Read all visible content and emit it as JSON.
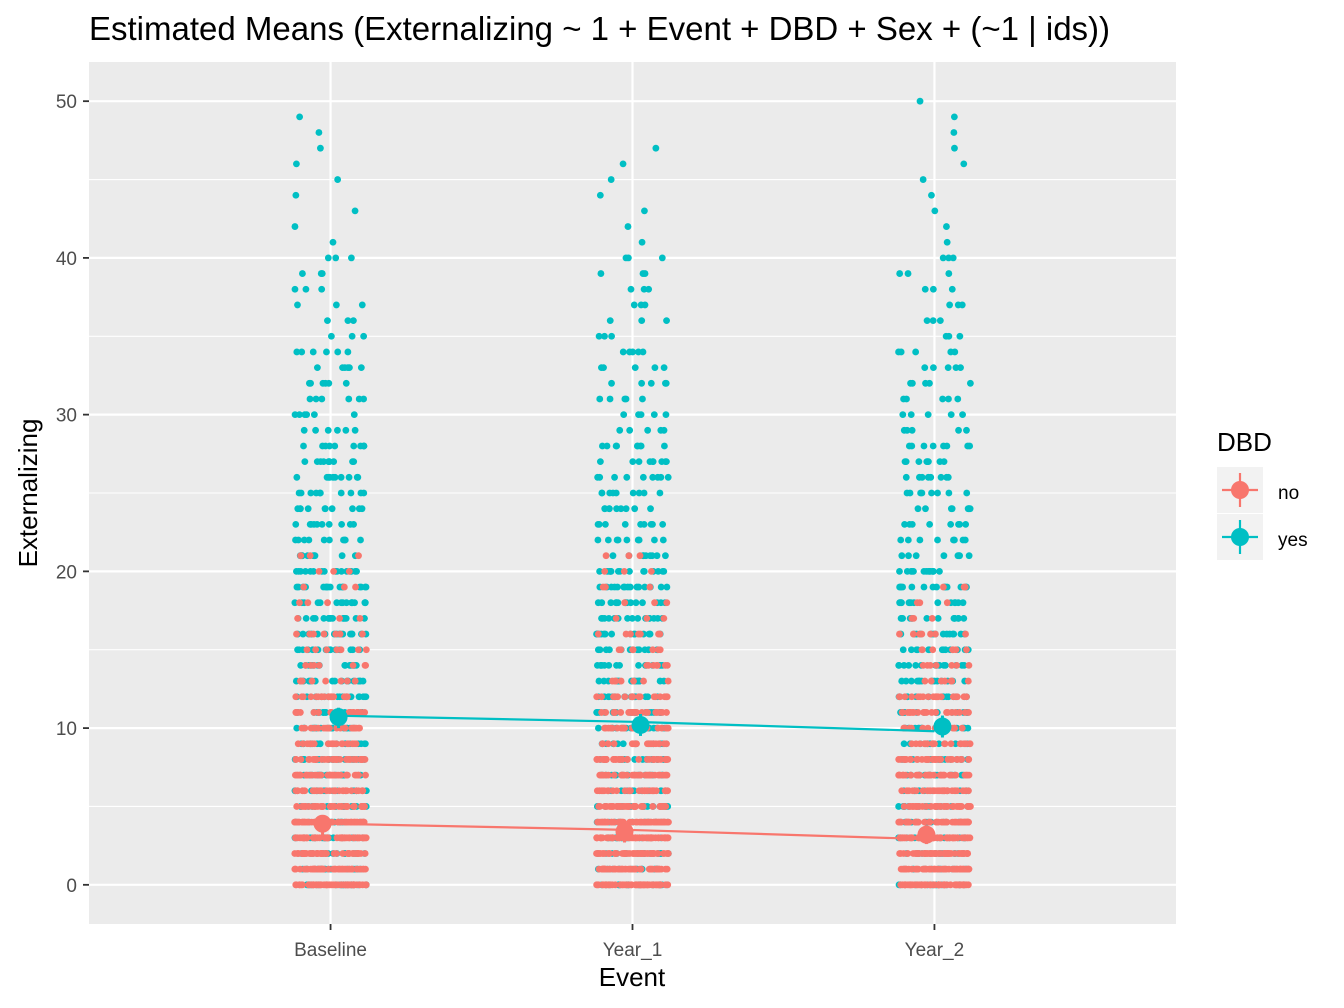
{
  "chart_data": {
    "type": "scatter",
    "title": "Estimated Means (Externalizing ~ 1 + Event + DBD + Sex + (~1 | ids))",
    "xlabel": "Event",
    "ylabel": "Externalizing",
    "categories": [
      "Baseline",
      "Year_1",
      "Year_2"
    ],
    "ylim": [
      -2.5,
      52.5
    ],
    "yticks": [
      0,
      10,
      20,
      30,
      40,
      50
    ],
    "grid": true,
    "legend": {
      "title": "DBD",
      "position": "right",
      "entries": [
        {
          "label": "no",
          "color": "#F8766D"
        },
        {
          "label": "yes",
          "color": "#00BFC4"
        }
      ]
    },
    "series": [
      {
        "name": "no",
        "color": "#F8766D",
        "means": [
          3.9,
          3.4,
          3.2
        ],
        "ci_low": [
          3.1,
          2.7,
          2.6
        ],
        "ci_high": [
          4.4,
          4.0,
          3.8
        ],
        "fitted_line": [
          3.9,
          3.5,
          2.9
        ],
        "raw_points": [
          {
            "range": [
              0,
              21
            ],
            "density": 0.9
          },
          {
            "range": [
              0,
              21
            ],
            "density": 0.9
          },
          {
            "range": [
              0,
              19
            ],
            "density": 0.9
          }
        ]
      },
      {
        "name": "yes",
        "color": "#00BFC4",
        "means": [
          10.7,
          10.2,
          10.1
        ],
        "ci_low": [
          10.0,
          9.5,
          9.4
        ],
        "ci_high": [
          11.3,
          10.9,
          10.8
        ],
        "fitted_line": [
          10.8,
          10.4,
          9.8
        ],
        "raw_points": [
          {
            "range": [
              0,
              49
            ],
            "density": 0.8
          },
          {
            "range": [
              0,
              47
            ],
            "density": 0.75
          },
          {
            "range": [
              0,
              50
            ],
            "density": 0.7
          }
        ]
      }
    ]
  }
}
